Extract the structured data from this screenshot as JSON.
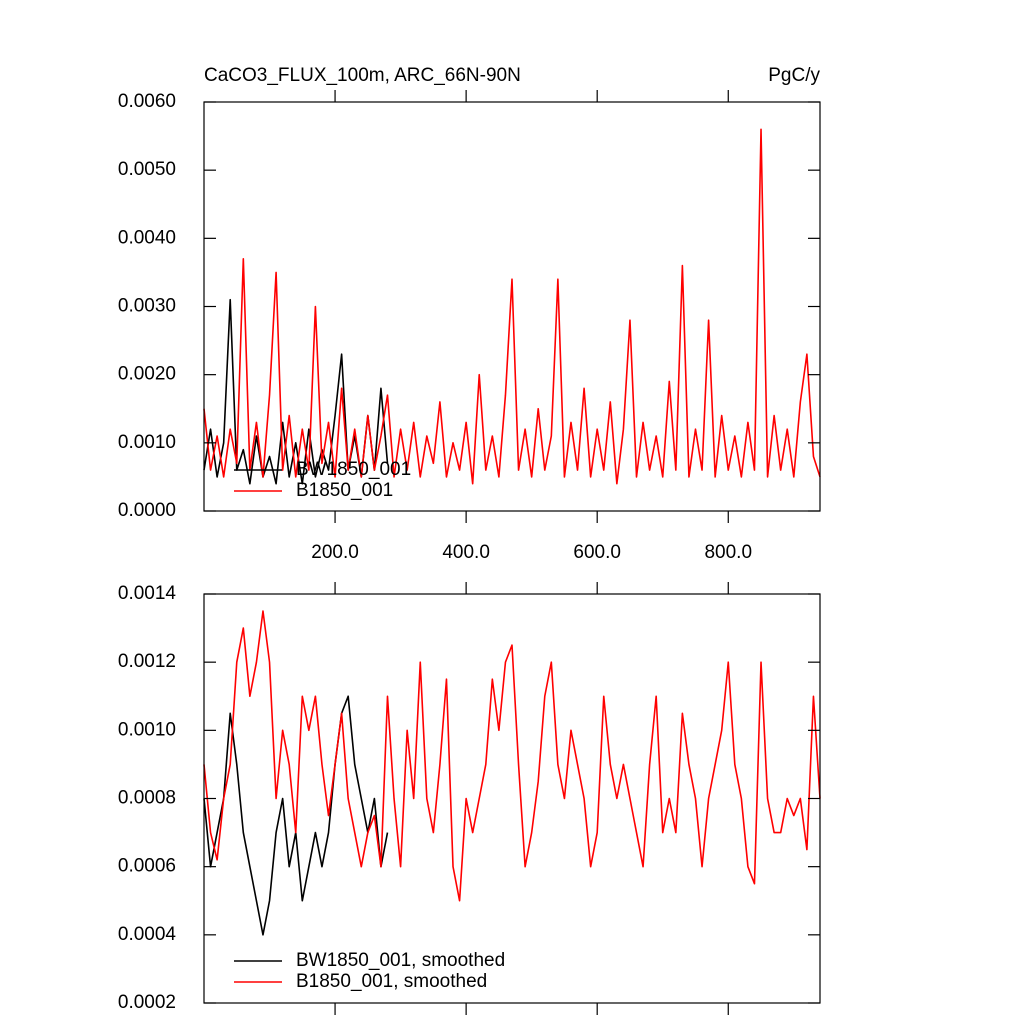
{
  "chart_data": [
    {
      "type": "line",
      "title": "CaCO3_FLUX_100m, ARC_66N-90N",
      "subtitle": "PgC/y",
      "xlim": [
        0,
        940
      ],
      "ylim": [
        0,
        0.006
      ],
      "xticks": [
        {
          "value": 200,
          "label": "200.0"
        },
        {
          "value": 400,
          "label": "400.0"
        },
        {
          "value": 600,
          "label": "600.0"
        },
        {
          "value": 800,
          "label": "800.0"
        }
      ],
      "yticks": [
        {
          "value": 0,
          "label": "0.0000"
        },
        {
          "value": 0.001,
          "label": "0.0010"
        },
        {
          "value": 0.002,
          "label": "0.0020"
        },
        {
          "value": 0.003,
          "label": "0.0030"
        },
        {
          "value": 0.004,
          "label": "0.0040"
        },
        {
          "value": 0.005,
          "label": "0.0050"
        },
        {
          "value": 0.006,
          "label": "0.0060"
        }
      ],
      "legend": "lower left",
      "x": [
        0,
        10,
        20,
        30,
        40,
        50,
        60,
        70,
        80,
        90,
        100,
        110,
        120,
        130,
        140,
        150,
        160,
        170,
        180,
        190,
        200,
        210,
        220,
        230,
        240,
        250,
        260,
        270,
        280,
        290,
        300,
        310,
        320,
        330,
        340,
        350,
        360,
        370,
        380,
        390,
        400,
        410,
        420,
        430,
        440,
        450,
        460,
        470,
        480,
        490,
        500,
        510,
        520,
        530,
        540,
        550,
        560,
        570,
        580,
        590,
        600,
        610,
        620,
        630,
        640,
        650,
        660,
        670,
        680,
        690,
        700,
        710,
        720,
        730,
        740,
        750,
        760,
        770,
        780,
        790,
        800,
        810,
        820,
        830,
        840,
        850,
        860,
        870,
        880,
        890,
        900,
        910,
        920,
        930,
        940
      ],
      "series": [
        {
          "name": "BW1850_001",
          "color": "#000000",
          "values": [
            0.0006,
            0.0012,
            0.0005,
            0.001,
            0.0031,
            0.0006,
            0.0009,
            0.0004,
            0.0011,
            0.0005,
            0.0008,
            0.0004,
            0.0013,
            0.0005,
            0.001,
            0.0004,
            0.0012,
            0.0005,
            0.0009,
            0.0006,
            0.0014,
            0.0023,
            0.0006,
            0.0011,
            0.0005,
            0.0014,
            0.0006,
            0.0018,
            0.0007,
            null,
            null,
            null,
            null,
            null,
            null,
            null,
            null,
            null,
            null,
            null,
            null,
            null,
            null,
            null,
            null,
            null,
            null,
            null,
            null,
            null,
            null,
            null,
            null,
            null,
            null,
            null,
            null,
            null,
            null,
            null,
            null,
            null,
            null,
            null,
            null,
            null,
            null,
            null,
            null,
            null,
            null,
            null,
            null,
            null,
            null,
            null,
            null,
            null,
            null,
            null,
            null,
            null,
            null,
            null,
            null,
            null,
            null,
            null,
            null,
            null,
            null,
            null,
            null,
            null,
            null
          ]
        },
        {
          "name": "B1850_001",
          "color": "#ff0000",
          "values": [
            0.0015,
            0.0006,
            0.0011,
            0.0005,
            0.0012,
            0.0007,
            0.0037,
            0.0006,
            0.0013,
            0.0005,
            0.0017,
            0.0035,
            0.0006,
            0.0014,
            0.0005,
            0.0012,
            0.0006,
            0.003,
            0.0007,
            0.0013,
            0.0005,
            0.0018,
            0.0006,
            0.0012,
            0.0005,
            0.0014,
            0.0006,
            0.0011,
            0.0017,
            0.0005,
            0.0012,
            0.0006,
            0.0013,
            0.0005,
            0.0011,
            0.0007,
            0.0016,
            0.0005,
            0.001,
            0.0006,
            0.0013,
            0.0004,
            0.002,
            0.0006,
            0.0011,
            0.0005,
            0.0017,
            0.0034,
            0.0006,
            0.0012,
            0.0005,
            0.0015,
            0.0006,
            0.0011,
            0.0034,
            0.0005,
            0.0013,
            0.0006,
            0.0018,
            0.0005,
            0.0012,
            0.0006,
            0.0016,
            0.0004,
            0.0012,
            0.0028,
            0.0005,
            0.0013,
            0.0006,
            0.0011,
            0.0005,
            0.0019,
            0.0006,
            0.0036,
            0.0005,
            0.0012,
            0.0006,
            0.0028,
            0.0005,
            0.0014,
            0.0006,
            0.0011,
            0.0005,
            0.0013,
            0.0006,
            0.0056,
            0.0005,
            0.0014,
            0.0006,
            0.0012,
            0.0005,
            0.0016,
            0.0023,
            0.0008,
            0.0005
          ]
        }
      ]
    },
    {
      "type": "line",
      "xlim": [
        0,
        940
      ],
      "ylim": [
        0.0002,
        0.0014
      ],
      "xticks": [
        200,
        400,
        600,
        800
      ],
      "yticks": [
        {
          "value": 0.0002,
          "label": "0.0002"
        },
        {
          "value": 0.0004,
          "label": "0.0004"
        },
        {
          "value": 0.0006,
          "label": "0.0006"
        },
        {
          "value": 0.0008,
          "label": "0.0008"
        },
        {
          "value": 0.001,
          "label": "0.0010"
        },
        {
          "value": 0.0012,
          "label": "0.0012"
        },
        {
          "value": 0.0014,
          "label": "0.0014"
        }
      ],
      "legend": "lower left",
      "x": [
        0,
        10,
        20,
        30,
        40,
        50,
        60,
        70,
        80,
        90,
        100,
        110,
        120,
        130,
        140,
        150,
        160,
        170,
        180,
        190,
        200,
        210,
        220,
        230,
        240,
        250,
        260,
        270,
        280,
        290,
        300,
        310,
        320,
        330,
        340,
        350,
        360,
        370,
        380,
        390,
        400,
        410,
        420,
        430,
        440,
        450,
        460,
        470,
        480,
        490,
        500,
        510,
        520,
        530,
        540,
        550,
        560,
        570,
        580,
        590,
        600,
        610,
        620,
        630,
        640,
        650,
        660,
        670,
        680,
        690,
        700,
        710,
        720,
        730,
        740,
        750,
        760,
        770,
        780,
        790,
        800,
        810,
        820,
        830,
        840,
        850,
        860,
        870,
        880,
        890,
        900,
        910,
        920,
        930,
        940
      ],
      "series": [
        {
          "name": "BW1850_001, smoothed",
          "color": "#000000",
          "values": [
            0.0008,
            0.0006,
            0.0007,
            0.0008,
            0.00105,
            0.0009,
            0.0007,
            0.0006,
            0.0005,
            0.0004,
            0.0005,
            0.0007,
            0.0008,
            0.0006,
            0.0007,
            0.0005,
            0.0006,
            0.0007,
            0.0006,
            0.0007,
            0.0009,
            0.00105,
            0.0011,
            0.0009,
            0.0008,
            0.0007,
            0.0008,
            0.0006,
            0.0007,
            null,
            null,
            null,
            null,
            null,
            null,
            null,
            null,
            null,
            null,
            null,
            null,
            null,
            null,
            null,
            null,
            null,
            null,
            null,
            null,
            null,
            null,
            null,
            null,
            null,
            null,
            null,
            null,
            null,
            null,
            null,
            null,
            null,
            null,
            null,
            null,
            null,
            null,
            null,
            null,
            null,
            null,
            null,
            null,
            null,
            null,
            null,
            null,
            null,
            null,
            null,
            null,
            null,
            null,
            null,
            null,
            null,
            null,
            null,
            null,
            null,
            null,
            null,
            null,
            null,
            null
          ]
        },
        {
          "name": "B1850_001, smoothed",
          "color": "#ff0000",
          "values": [
            0.0009,
            0.0007,
            0.00062,
            0.0008,
            0.0009,
            0.0012,
            0.0013,
            0.0011,
            0.0012,
            0.00135,
            0.0012,
            0.0008,
            0.001,
            0.0009,
            0.0007,
            0.0011,
            0.001,
            0.0011,
            0.0009,
            0.00075,
            0.0009,
            0.00105,
            0.0008,
            0.0007,
            0.0006,
            0.0007,
            0.00075,
            0.0006,
            0.0011,
            0.0008,
            0.0006,
            0.001,
            0.0008,
            0.0012,
            0.0008,
            0.0007,
            0.0009,
            0.00115,
            0.0006,
            0.0005,
            0.0008,
            0.0007,
            0.0008,
            0.0009,
            0.00115,
            0.001,
            0.0012,
            0.00125,
            0.0009,
            0.0006,
            0.0007,
            0.00085,
            0.0011,
            0.0012,
            0.0009,
            0.0008,
            0.001,
            0.0009,
            0.0008,
            0.0006,
            0.0007,
            0.0011,
            0.0009,
            0.0008,
            0.0009,
            0.0008,
            0.0007,
            0.0006,
            0.0009,
            0.0011,
            0.0007,
            0.0008,
            0.0007,
            0.00105,
            0.0009,
            0.0008,
            0.0006,
            0.0008,
            0.0009,
            0.001,
            0.0012,
            0.0009,
            0.0008,
            0.0006,
            0.00055,
            0.0012,
            0.0008,
            0.0007,
            0.0007,
            0.0008,
            0.00075,
            0.0008,
            0.00065,
            0.0011,
            0.0008
          ]
        }
      ]
    }
  ]
}
